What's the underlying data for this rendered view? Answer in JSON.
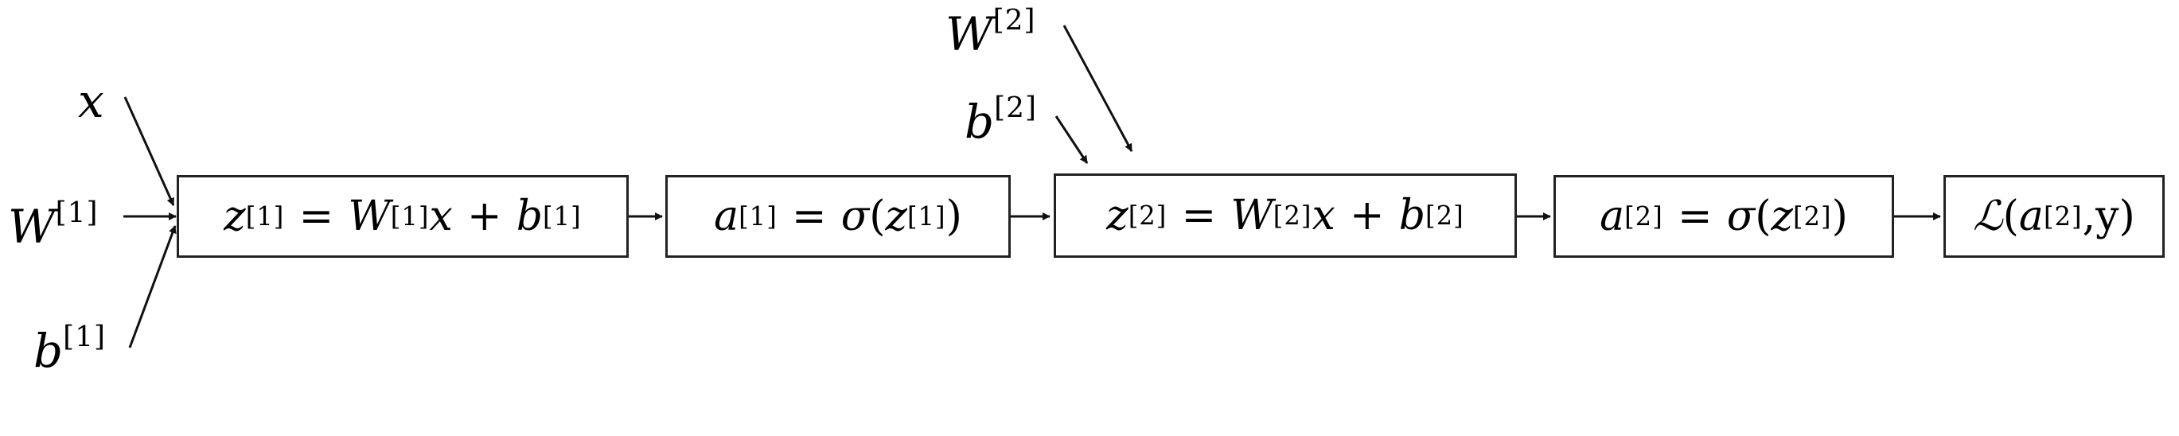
{
  "inputs": {
    "x": {
      "sym": "x"
    },
    "w1": {
      "sym": "W",
      "sup": "[1]"
    },
    "b1": {
      "sym": "b",
      "sup": "[1]"
    },
    "w2": {
      "sym": "W",
      "sup": "[2]"
    },
    "b2": {
      "sym": "b",
      "sup": "[2]"
    }
  },
  "boxes": {
    "z1": {
      "lhs": "z",
      "lhs_sup": "[1]",
      "eq": "=",
      "w": "W",
      "w_sup": "[1]",
      "x": "x",
      "plus": "+",
      "b": "b",
      "b_sup": "[1]"
    },
    "a1": {
      "lhs": "a",
      "lhs_sup": "[1]",
      "eq": "=",
      "fn": "σ",
      "lp": "(",
      "arg": "z",
      "arg_sup": "[1]",
      "rp": ")"
    },
    "z2": {
      "lhs": "z",
      "lhs_sup": "[2]",
      "eq": "=",
      "w": "W",
      "w_sup": "[2]",
      "x": "x",
      "plus": "+",
      "b": "b",
      "b_sup": "[2]"
    },
    "a2": {
      "lhs": "a",
      "lhs_sup": "[2]",
      "eq": "=",
      "fn": "σ",
      "lp": "(",
      "arg": "z",
      "arg_sup": "[2]",
      "rp": ")"
    },
    "loss": {
      "fn": "ℒ",
      "lp": "(",
      "arg": "a",
      "arg_sup": "[2]",
      "comma": ",",
      "y": "y",
      "rp": ")"
    }
  },
  "colors": {
    "line": "#111111",
    "border": "#222222"
  }
}
